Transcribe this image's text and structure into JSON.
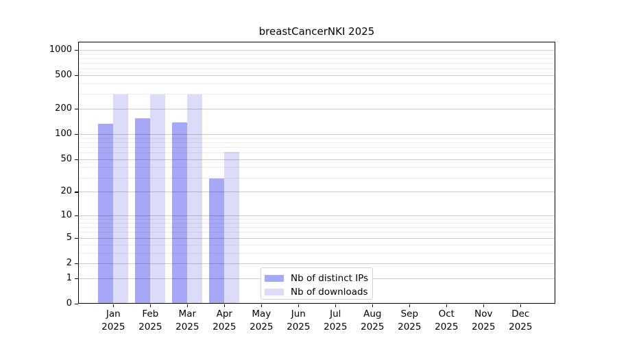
{
  "chart_data": {
    "type": "bar",
    "title": "breastCancerNKI 2025",
    "categories": [
      "Jan",
      "Feb",
      "Mar",
      "Apr",
      "May",
      "Jun",
      "Jul",
      "Aug",
      "Sep",
      "Oct",
      "Nov",
      "Dec"
    ],
    "x_year_label": "2025",
    "series": [
      {
        "name": "Nb of distinct IPs",
        "color": "#a7a7f7",
        "values": [
          132,
          153,
          137,
          29,
          0,
          0,
          0,
          0,
          0,
          0,
          0,
          0
        ]
      },
      {
        "name": "Nb of downloads",
        "color": "#dcdcf9",
        "values": [
          295,
          295,
          295,
          61,
          0,
          0,
          0,
          0,
          0,
          0,
          0,
          0
        ]
      }
    ],
    "y_ticks": [
      0,
      1,
      2,
      5,
      10,
      20,
      50,
      100,
      200,
      500,
      1000
    ],
    "y_minor_gridlines": [
      3,
      4,
      6,
      7,
      8,
      9,
      30,
      40,
      60,
      70,
      80,
      90,
      300,
      400,
      600,
      700,
      800,
      900
    ],
    "y_scale": "log10(1+value)",
    "y_axis_max": 1255,
    "grid": "on",
    "legend_position": "inside-bottom-center"
  }
}
